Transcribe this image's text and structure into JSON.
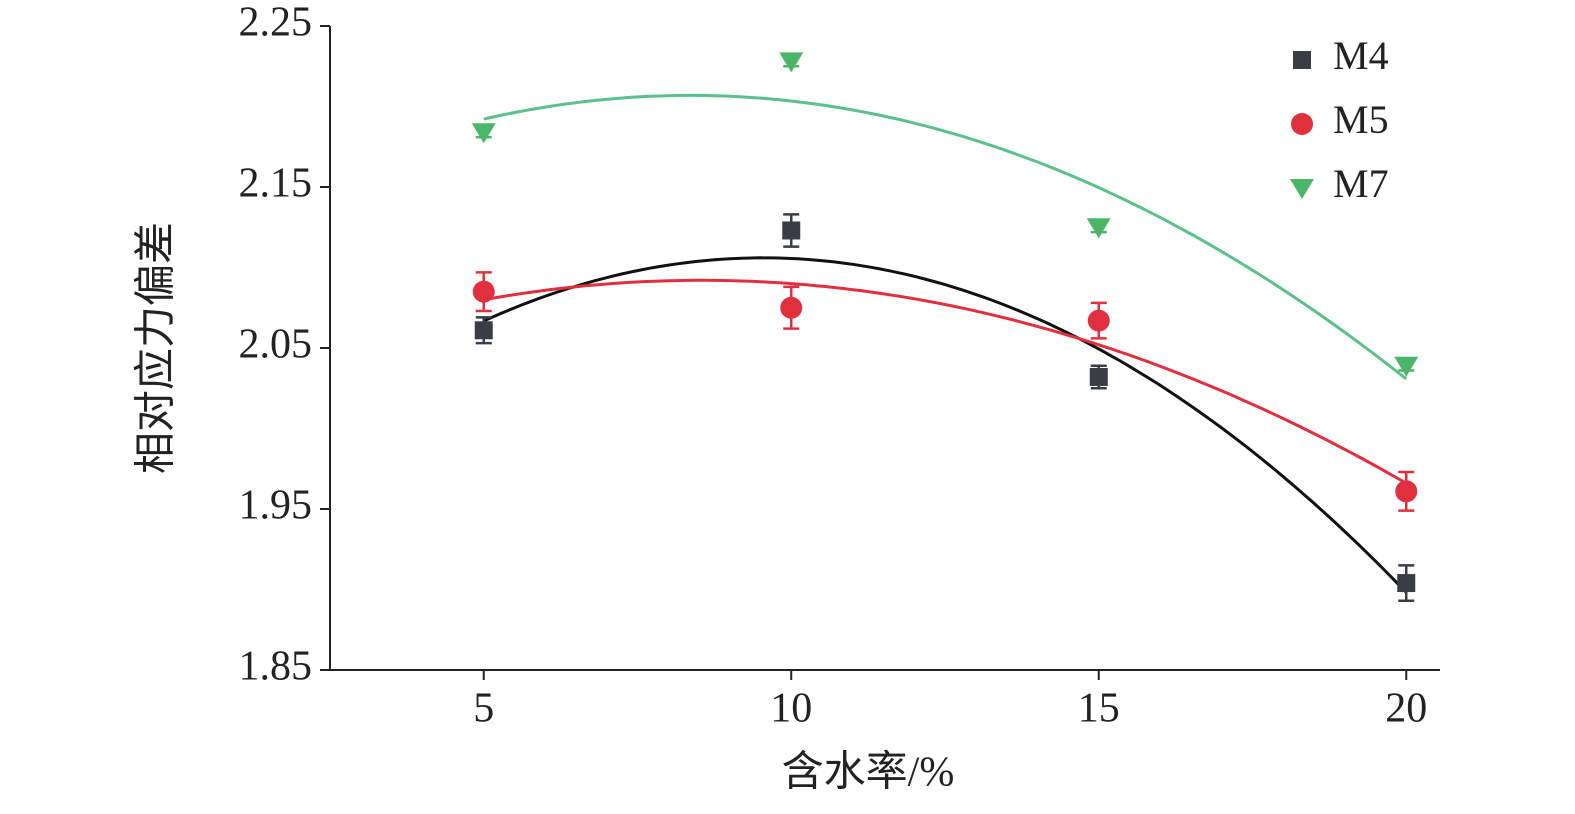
{
  "chart_data": {
    "type": "scatter",
    "x_label": "含水率/%",
    "y_label": "相对应力偏差",
    "x": [
      5,
      10,
      15,
      20
    ],
    "xlim": [
      2.5,
      20.5
    ],
    "xticks": [
      5,
      10,
      15,
      20
    ],
    "ylim": [
      1.85,
      2.25
    ],
    "yticks": [
      {
        "value": 1.85,
        "label": "1.85"
      },
      {
        "value": 1.95,
        "label": "1.95"
      },
      {
        "value": 2.05,
        "label": "2.05"
      },
      {
        "value": 2.15,
        "label": "2.15"
      },
      {
        "value": 2.25,
        "label": "2.25"
      }
    ],
    "legend": "upper right",
    "series": [
      {
        "name": "M4",
        "color": "#3a3d45",
        "line_color": "#111111",
        "marker": "square",
        "values": [
          2.061,
          2.123,
          2.032,
          1.904
        ],
        "errors": [
          0.008,
          0.01,
          0.007,
          0.011
        ]
      },
      {
        "name": "M5",
        "color": "#e0303f",
        "line_color": "#e0303f",
        "marker": "circle",
        "values": [
          2.085,
          2.075,
          2.067,
          1.961
        ],
        "errors": [
          0.012,
          0.013,
          0.011,
          0.012
        ]
      },
      {
        "name": "M7",
        "color": "#4cb56a",
        "line_color": "#5cc08a",
        "marker": "triangle-down",
        "values": [
          2.184,
          2.228,
          2.125,
          2.039
        ],
        "errors": [
          0.003,
          0.003,
          0.003,
          0.003
        ]
      }
    ]
  }
}
